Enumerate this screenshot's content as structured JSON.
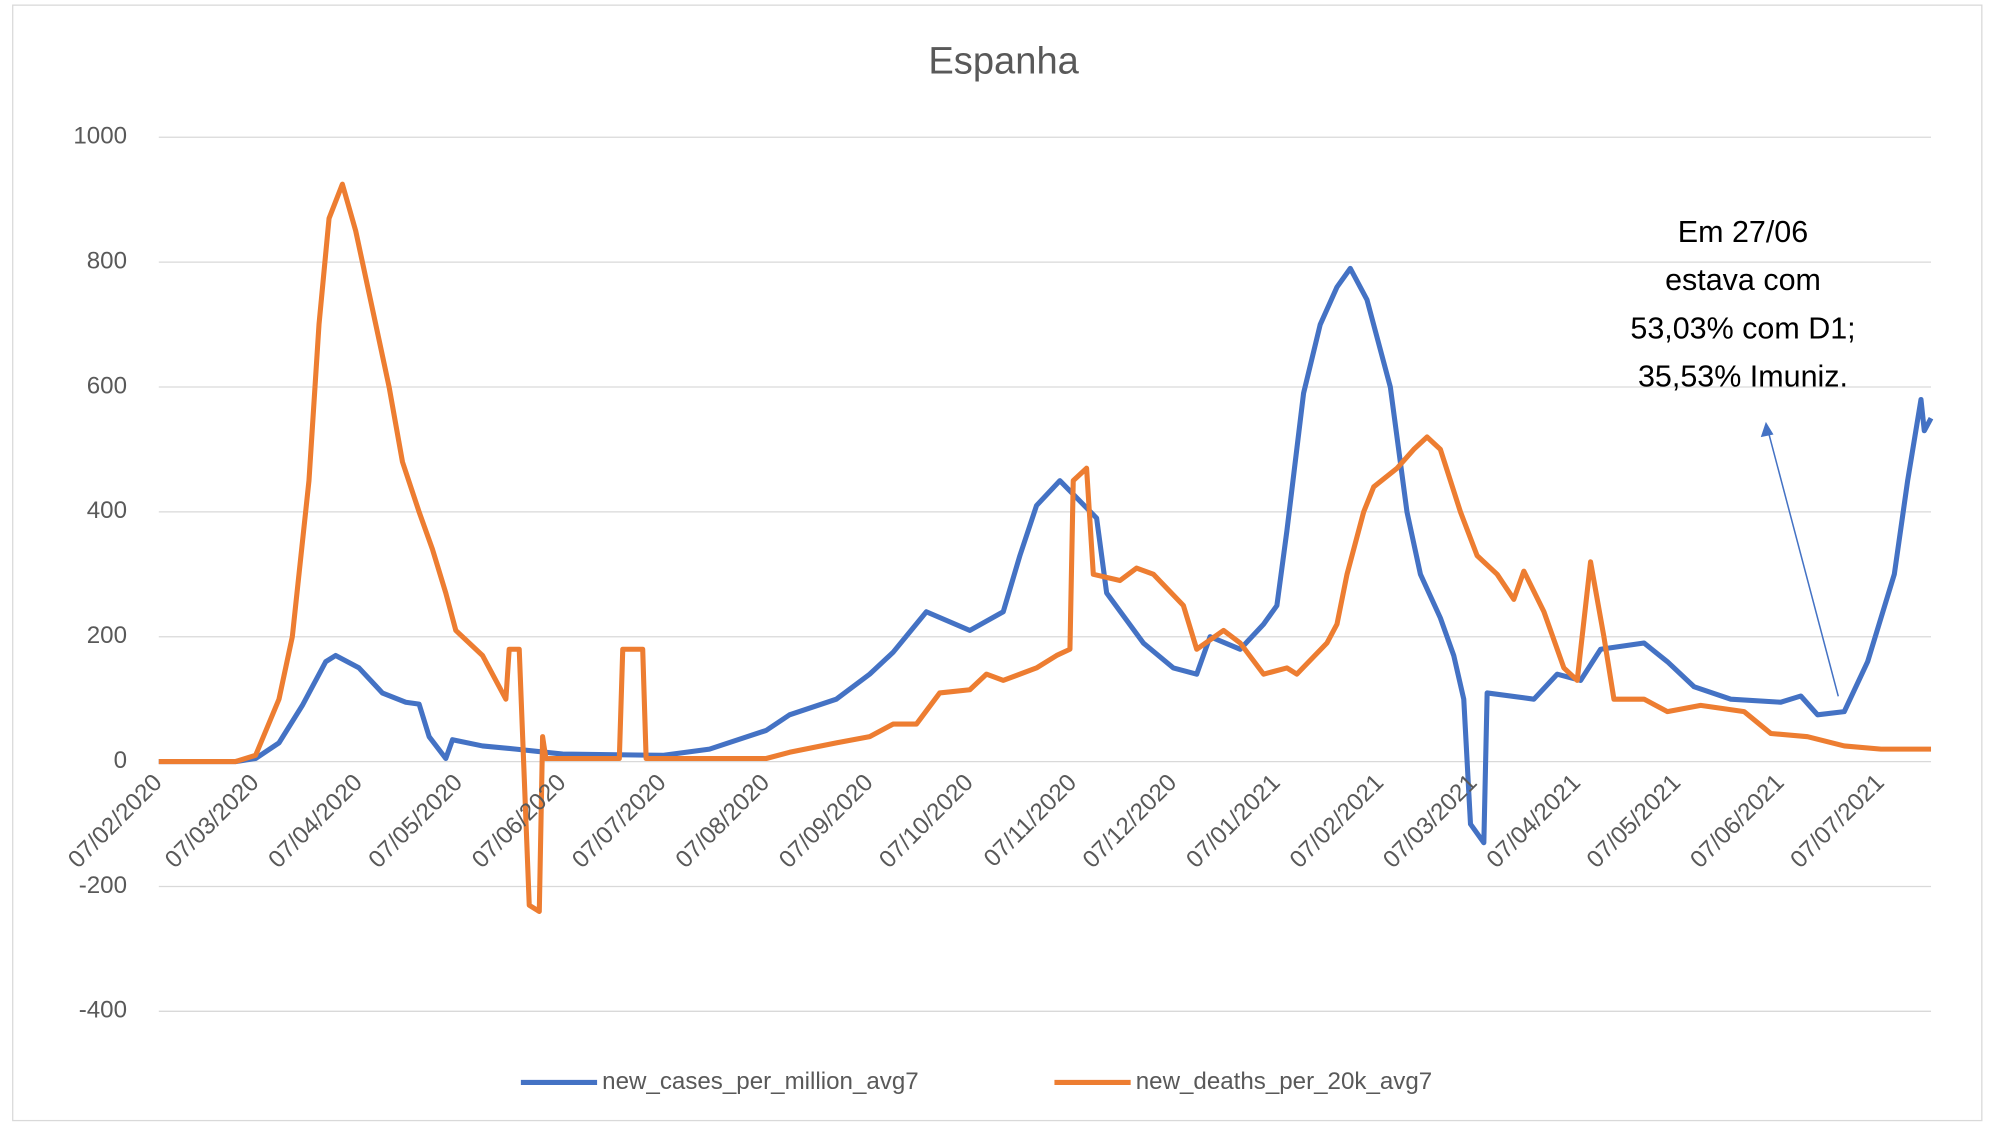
{
  "chart_data": {
    "type": "line",
    "title": "Espanha",
    "series": [
      {
        "name": "new_cases_per_million_avg7",
        "color": "#4472c4",
        "x": [
          "07/02/2020",
          "01/03/2020",
          "07/03/2020",
          "14/03/2020",
          "21/03/2020",
          "28/03/2020",
          "31/03/2020",
          "07/04/2020",
          "14/04/2020",
          "21/04/2020",
          "25/04/2020",
          "28/04/2020",
          "03/05/2020",
          "05/05/2020",
          "14/05/2020",
          "24/05/2020",
          "07/06/2020",
          "07/07/2020",
          "21/07/2020",
          "07/08/2020",
          "14/08/2020",
          "28/08/2020",
          "07/09/2020",
          "14/09/2020",
          "24/09/2020",
          "07/10/2020",
          "17/10/2020",
          "22/10/2020",
          "27/10/2020",
          "03/11/2020",
          "14/11/2020",
          "17/11/2020",
          "28/11/2020",
          "07/12/2020",
          "14/12/2020",
          "18/12/2020",
          "27/12/2020",
          "03/01/2021",
          "07/01/2021",
          "10/01/2021",
          "15/01/2021",
          "20/01/2021",
          "25/01/2021",
          "29/01/2021",
          "03/02/2021",
          "10/02/2021",
          "15/02/2021",
          "19/02/2021",
          "25/02/2021",
          "01/03/2021",
          "04/03/2021",
          "06/03/2021",
          "10/03/2021",
          "11/03/2021",
          "25/03/2021",
          "01/04/2021",
          "08/04/2021",
          "14/04/2021",
          "27/04/2021",
          "04/05/2021",
          "12/05/2021",
          "23/05/2021",
          "07/06/2021",
          "13/06/2021",
          "18/06/2021",
          "26/06/2021",
          "03/07/2021",
          "11/07/2021",
          "15/07/2021",
          "19/07/2021",
          "20/07/2021",
          "22/07/2021"
        ],
        "values": [
          0,
          0,
          5,
          30,
          90,
          160,
          170,
          150,
          110,
          95,
          92,
          40,
          5,
          35,
          25,
          20,
          12,
          10,
          20,
          50,
          75,
          100,
          140,
          175,
          240,
          210,
          240,
          330,
          410,
          450,
          390,
          270,
          190,
          150,
          140,
          200,
          180,
          220,
          250,
          370,
          590,
          700,
          760,
          790,
          740,
          600,
          400,
          300,
          230,
          170,
          100,
          -100,
          -130,
          110,
          100,
          140,
          130,
          180,
          190,
          160,
          120,
          100,
          95,
          105,
          75,
          80,
          160,
          300,
          450,
          580,
          530,
          550
        ]
      },
      {
        "name": "new_deaths_per_20k_avg7",
        "color": "#ed7d31",
        "x": [
          "07/02/2020",
          "01/03/2020",
          "07/03/2020",
          "14/03/2020",
          "18/03/2020",
          "23/03/2020",
          "26/03/2020",
          "29/03/2020",
          "02/04/2020",
          "06/04/2020",
          "12/04/2020",
          "16/04/2020",
          "20/04/2020",
          "25/04/2020",
          "29/04/2020",
          "03/05/2020",
          "06/05/2020",
          "14/05/2020",
          "21/05/2020",
          "22/05/2020",
          "25/05/2020",
          "28/05/2020",
          "31/05/2020",
          "01/06/2020",
          "02/06/2020",
          "24/06/2020",
          "25/06/2020",
          "01/07/2020",
          "02/07/2020",
          "07/08/2020",
          "14/08/2020",
          "28/08/2020",
          "07/09/2020",
          "14/09/2020",
          "21/09/2020",
          "28/09/2020",
          "07/10/2020",
          "12/10/2020",
          "17/10/2020",
          "27/10/2020",
          "02/11/2020",
          "06/11/2020",
          "07/11/2020",
          "11/11/2020",
          "13/11/2020",
          "21/11/2020",
          "26/11/2020",
          "01/12/2020",
          "10/12/2020",
          "14/12/2020",
          "22/12/2020",
          "27/12/2020",
          "03/01/2021",
          "10/01/2021",
          "13/01/2021",
          "22/01/2021",
          "25/01/2021",
          "28/01/2021",
          "02/02/2021",
          "05/02/2021",
          "12/02/2021",
          "17/02/2021",
          "21/02/2021",
          "25/02/2021",
          "03/03/2021",
          "08/03/2021",
          "14/03/2021",
          "19/03/2021",
          "22/03/2021",
          "28/03/2021",
          "03/04/2021",
          "07/04/2021",
          "11/04/2021",
          "15/04/2021",
          "18/04/2021",
          "27/04/2021",
          "04/05/2021",
          "14/05/2021",
          "27/05/2021",
          "04/06/2021",
          "15/06/2021",
          "26/06/2021",
          "07/07/2021",
          "22/07/2021"
        ],
        "values": [
          0,
          0,
          10,
          100,
          200,
          450,
          700,
          870,
          925,
          850,
          700,
          600,
          480,
          400,
          340,
          270,
          210,
          170,
          100,
          180,
          180,
          -230,
          -240,
          40,
          5,
          5,
          180,
          180,
          5,
          5,
          15,
          30,
          40,
          60,
          60,
          110,
          115,
          140,
          130,
          150,
          170,
          180,
          450,
          470,
          300,
          290,
          310,
          300,
          250,
          180,
          210,
          190,
          140,
          150,
          140,
          190,
          220,
          300,
          400,
          440,
          470,
          500,
          520,
          500,
          400,
          330,
          300,
          260,
          305,
          240,
          150,
          130,
          320,
          200,
          100,
          100,
          80,
          90,
          80,
          45,
          40,
          25,
          20,
          20
        ]
      }
    ],
    "xlim": [
      "07/02/2020",
      "22/07/2021"
    ],
    "xticks": [
      "07/02/2020",
      "07/03/2020",
      "07/04/2020",
      "07/05/2020",
      "07/06/2020",
      "07/07/2020",
      "07/08/2020",
      "07/09/2020",
      "07/10/2020",
      "07/11/2020",
      "07/12/2020",
      "07/01/2021",
      "07/02/2021",
      "07/03/2021",
      "07/04/2021",
      "07/05/2021",
      "07/06/2021",
      "07/07/2021"
    ],
    "ylim": [
      -400,
      1000
    ],
    "yticks": [
      -400,
      -200,
      0,
      200,
      400,
      600,
      800,
      1000
    ],
    "grid": true,
    "legend": "bottom",
    "annotation": [
      "Em 27/06",
      "estava com",
      "53,03% com D1;",
      "35,53% Imuniz."
    ]
  }
}
